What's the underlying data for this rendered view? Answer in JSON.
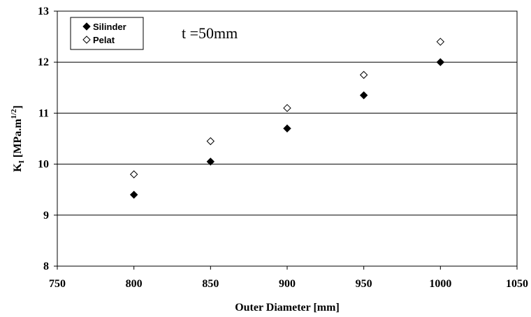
{
  "chart_data": {
    "type": "scatter",
    "title": "",
    "xlabel": "Outer Diameter [mm]",
    "ylabel": {
      "prefix": "K",
      "prefix_sub": "I",
      "main": " [MPa.m",
      "sup": "1/2",
      "suffix": "]"
    },
    "xlim": [
      750,
      1050
    ],
    "ylim": [
      8,
      13
    ],
    "xticks": [
      750,
      800,
      850,
      900,
      950,
      1000,
      1050
    ],
    "yticks": [
      8,
      9,
      10,
      11,
      12,
      13
    ],
    "grid": "horizontal",
    "legend_position": "top-left",
    "annotation": "t =50mm",
    "series": [
      {
        "name": "Silinder",
        "marker": "filled-diamond",
        "color": "#000000",
        "x": [
          800,
          850,
          900,
          950,
          1000
        ],
        "y": [
          9.4,
          10.05,
          10.7,
          11.35,
          12.0
        ]
      },
      {
        "name": "Pelat",
        "marker": "open-diamond",
        "color": "#000000",
        "x": [
          800,
          850,
          900,
          950,
          1000
        ],
        "y": [
          9.8,
          10.45,
          11.1,
          11.75,
          12.4
        ]
      }
    ]
  }
}
